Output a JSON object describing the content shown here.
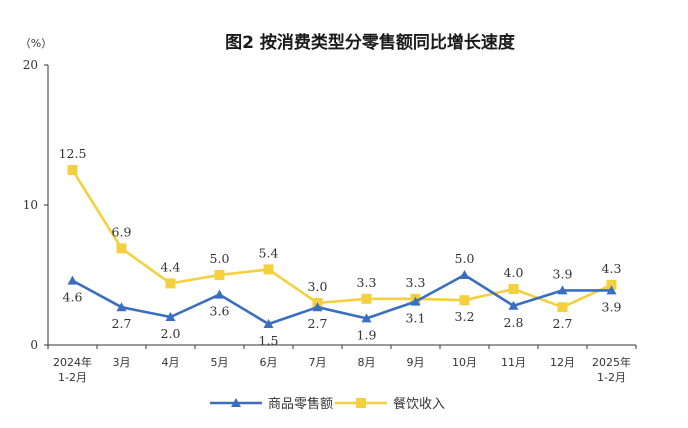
{
  "chart_data": {
    "type": "line",
    "title": "图2  按消费类型分零售额同比增长速度",
    "unit": "（%）",
    "ylim": [
      0,
      20
    ],
    "yticks": [
      "0",
      "10",
      "20"
    ],
    "categories": [
      [
        "2024年",
        "1-2月"
      ],
      [
        "3月"
      ],
      [
        "4月"
      ],
      [
        "5月"
      ],
      [
        "6月"
      ],
      [
        "7月"
      ],
      [
        "8月"
      ],
      [
        "9月"
      ],
      [
        "10月"
      ],
      [
        "11月"
      ],
      [
        "12月"
      ],
      [
        "2025年",
        "1-2月"
      ]
    ],
    "series": [
      {
        "name": "商品零售额",
        "color": "#3a6fc0",
        "marker": "triangle",
        "values": [
          4.6,
          2.7,
          2.0,
          3.6,
          1.5,
          2.7,
          1.9,
          3.1,
          5.0,
          2.8,
          3.9,
          3.9
        ],
        "labels": [
          "4.6",
          "2.7",
          "2.0",
          "3.6",
          "1.5",
          "2.7",
          "1.9",
          "3.1",
          "5.0",
          "2.8",
          "3.9",
          "3.9"
        ]
      },
      {
        "name": "餐饮收入",
        "color": "#f4d03f",
        "marker": "square",
        "values": [
          12.5,
          6.9,
          4.4,
          5.0,
          5.4,
          3.0,
          3.3,
          3.3,
          3.2,
          4.0,
          2.7,
          4.3
        ],
        "labels": [
          "12.5",
          "6.9",
          "4.4",
          "5.0",
          "5.4",
          "3.0",
          "3.3",
          "3.3",
          "3.2",
          "4.0",
          "2.7",
          "4.3"
        ]
      }
    ],
    "legend": "bottom-center",
    "grid": false
  }
}
